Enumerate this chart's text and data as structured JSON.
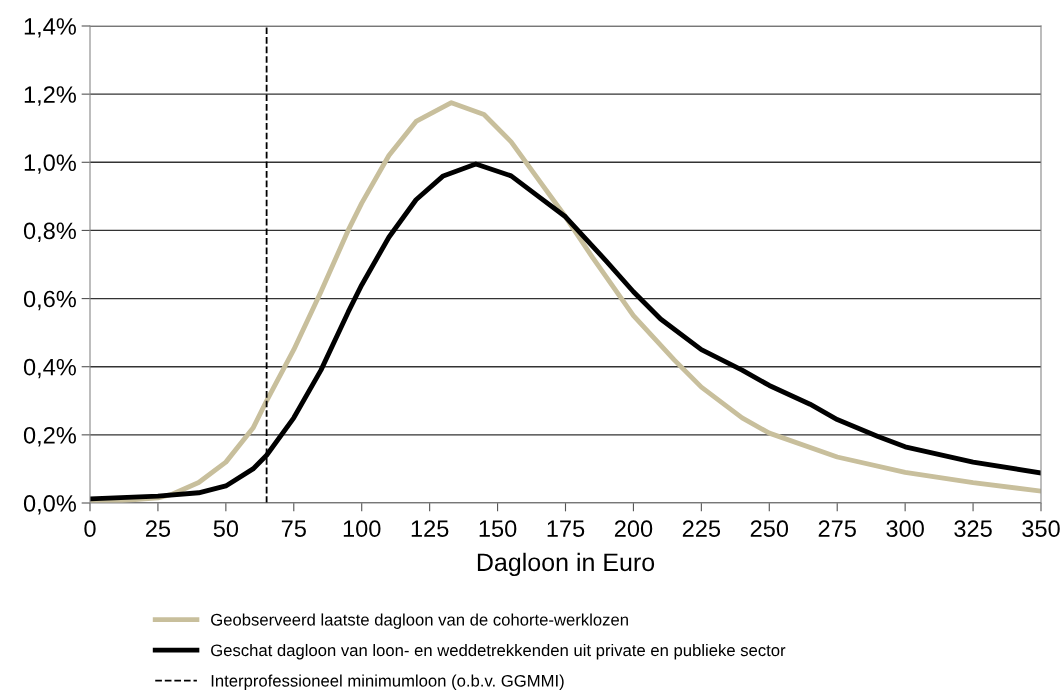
{
  "chart_data": {
    "type": "line",
    "xlabel": "Dagloon in Euro",
    "xlim": [
      0,
      350
    ],
    "xticks": [
      0,
      25,
      50,
      75,
      100,
      125,
      150,
      175,
      200,
      225,
      250,
      275,
      300,
      325,
      350
    ],
    "ylim": [
      0,
      1.4
    ],
    "yticks": [
      {
        "value": 0,
        "label": "0,0%"
      },
      {
        "value": 0.2,
        "label": "0,2%"
      },
      {
        "value": 0.4,
        "label": "0,4%"
      },
      {
        "value": 0.6,
        "label": "0,6%"
      },
      {
        "value": 0.8,
        "label": "0,8%"
      },
      {
        "value": 1.0,
        "label": "1,0%"
      },
      {
        "value": 1.2,
        "label": "1,2%"
      },
      {
        "value": 1.4,
        "label": "1,4%"
      }
    ],
    "grid": "y",
    "legend": "bottom",
    "marker": "none",
    "line_style": "solid",
    "series": [
      {
        "name": "Geobserveerd laatste dagloon van de cohorte-werklozen",
        "color": "#c8bf9c",
        "x": [
          0,
          25,
          30,
          40,
          50,
          60,
          65,
          75,
          85,
          95,
          100,
          110,
          120,
          133,
          145,
          155,
          165,
          175,
          185,
          200,
          215,
          225,
          240,
          250,
          275,
          300,
          325,
          350
        ],
        "values": [
          0.0,
          0.015,
          0.025,
          0.06,
          0.12,
          0.22,
          0.3,
          0.45,
          0.62,
          0.8,
          0.88,
          1.02,
          1.12,
          1.175,
          1.14,
          1.06,
          0.95,
          0.84,
          0.72,
          0.55,
          0.42,
          0.34,
          0.25,
          0.205,
          0.135,
          0.09,
          0.06,
          0.035
        ]
      },
      {
        "name": "Geschat dagloon van loon- en weddetrekkenden uit private en publieke sector",
        "color": "#000000",
        "x": [
          0,
          25,
          40,
          50,
          60,
          65,
          75,
          85,
          95,
          100,
          110,
          120,
          130,
          142,
          155,
          165,
          175,
          190,
          200,
          210,
          225,
          240,
          250,
          265,
          275,
          290,
          300,
          325,
          350
        ],
        "values": [
          0.012,
          0.02,
          0.03,
          0.05,
          0.1,
          0.14,
          0.25,
          0.39,
          0.56,
          0.64,
          0.78,
          0.89,
          0.96,
          0.995,
          0.96,
          0.9,
          0.84,
          0.71,
          0.62,
          0.54,
          0.45,
          0.39,
          0.345,
          0.29,
          0.245,
          0.195,
          0.165,
          0.12,
          0.088
        ]
      }
    ],
    "ref_lines": [
      {
        "axis": "x",
        "value": 65,
        "label": "Interprofessioneel minimumloon (o.b.v. GGMMI)",
        "color": "#000000",
        "line_style": "dashed"
      }
    ]
  }
}
